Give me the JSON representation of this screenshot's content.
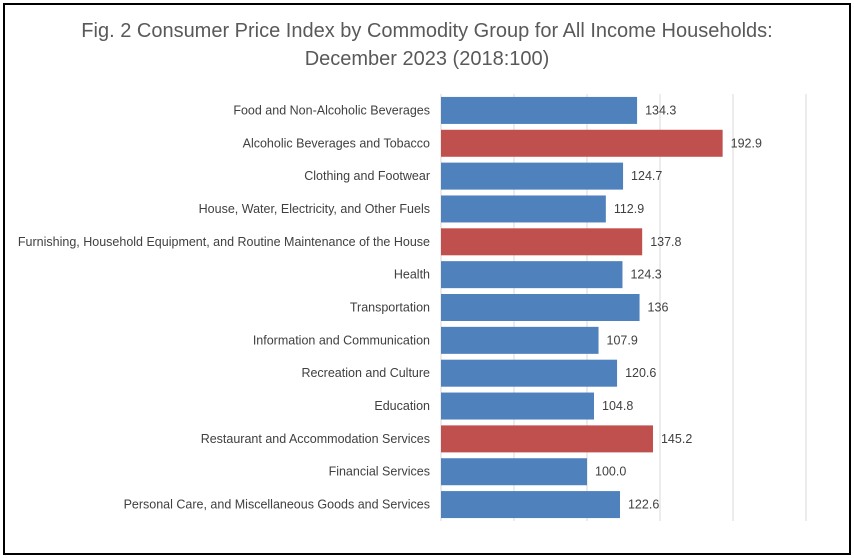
{
  "chart_data": {
    "type": "bar",
    "orientation": "horizontal",
    "title_line1": "Fig. 2 Consumer Price Index by Commodity Group for All Income Households:",
    "title_line2": "December 2023 (2018:100)",
    "categories": [
      "Food and Non-Alcoholic Beverages",
      "Alcoholic Beverages and Tobacco",
      "Clothing and Footwear",
      "House, Water, Electricity, and Other Fuels",
      "Furnishing, Household Equipment, and Routine Maintenance of the House",
      "Health",
      "Transportation",
      "Information and Communication",
      "Recreation and Culture",
      "Education",
      "Restaurant and Accommodation Services",
      "Financial Services",
      "Personal Care, and Miscellaneous Goods and Services"
    ],
    "values": [
      134.3,
      192.9,
      124.7,
      112.9,
      137.8,
      124.3,
      136,
      107.9,
      120.6,
      104.8,
      145.2,
      100.0,
      122.6
    ],
    "value_labels": [
      "134.3",
      "192.9",
      "124.7",
      "112.9",
      "137.8",
      "124.3",
      "136",
      "107.9",
      "120.6",
      "104.8",
      "145.2",
      "100.0",
      "122.6"
    ],
    "highlighted": [
      false,
      true,
      false,
      false,
      true,
      false,
      false,
      false,
      false,
      false,
      true,
      false,
      false
    ],
    "xlim": [
      0,
      250
    ],
    "grid_step": 50,
    "xaxis_tick_labels_shown": false,
    "grid": true,
    "legend": "none",
    "colors": {
      "normal": "#4F81BD",
      "highlight": "#C0504D",
      "grid": "#D9D9D9",
      "text": "#404040",
      "title": "#595959"
    }
  }
}
